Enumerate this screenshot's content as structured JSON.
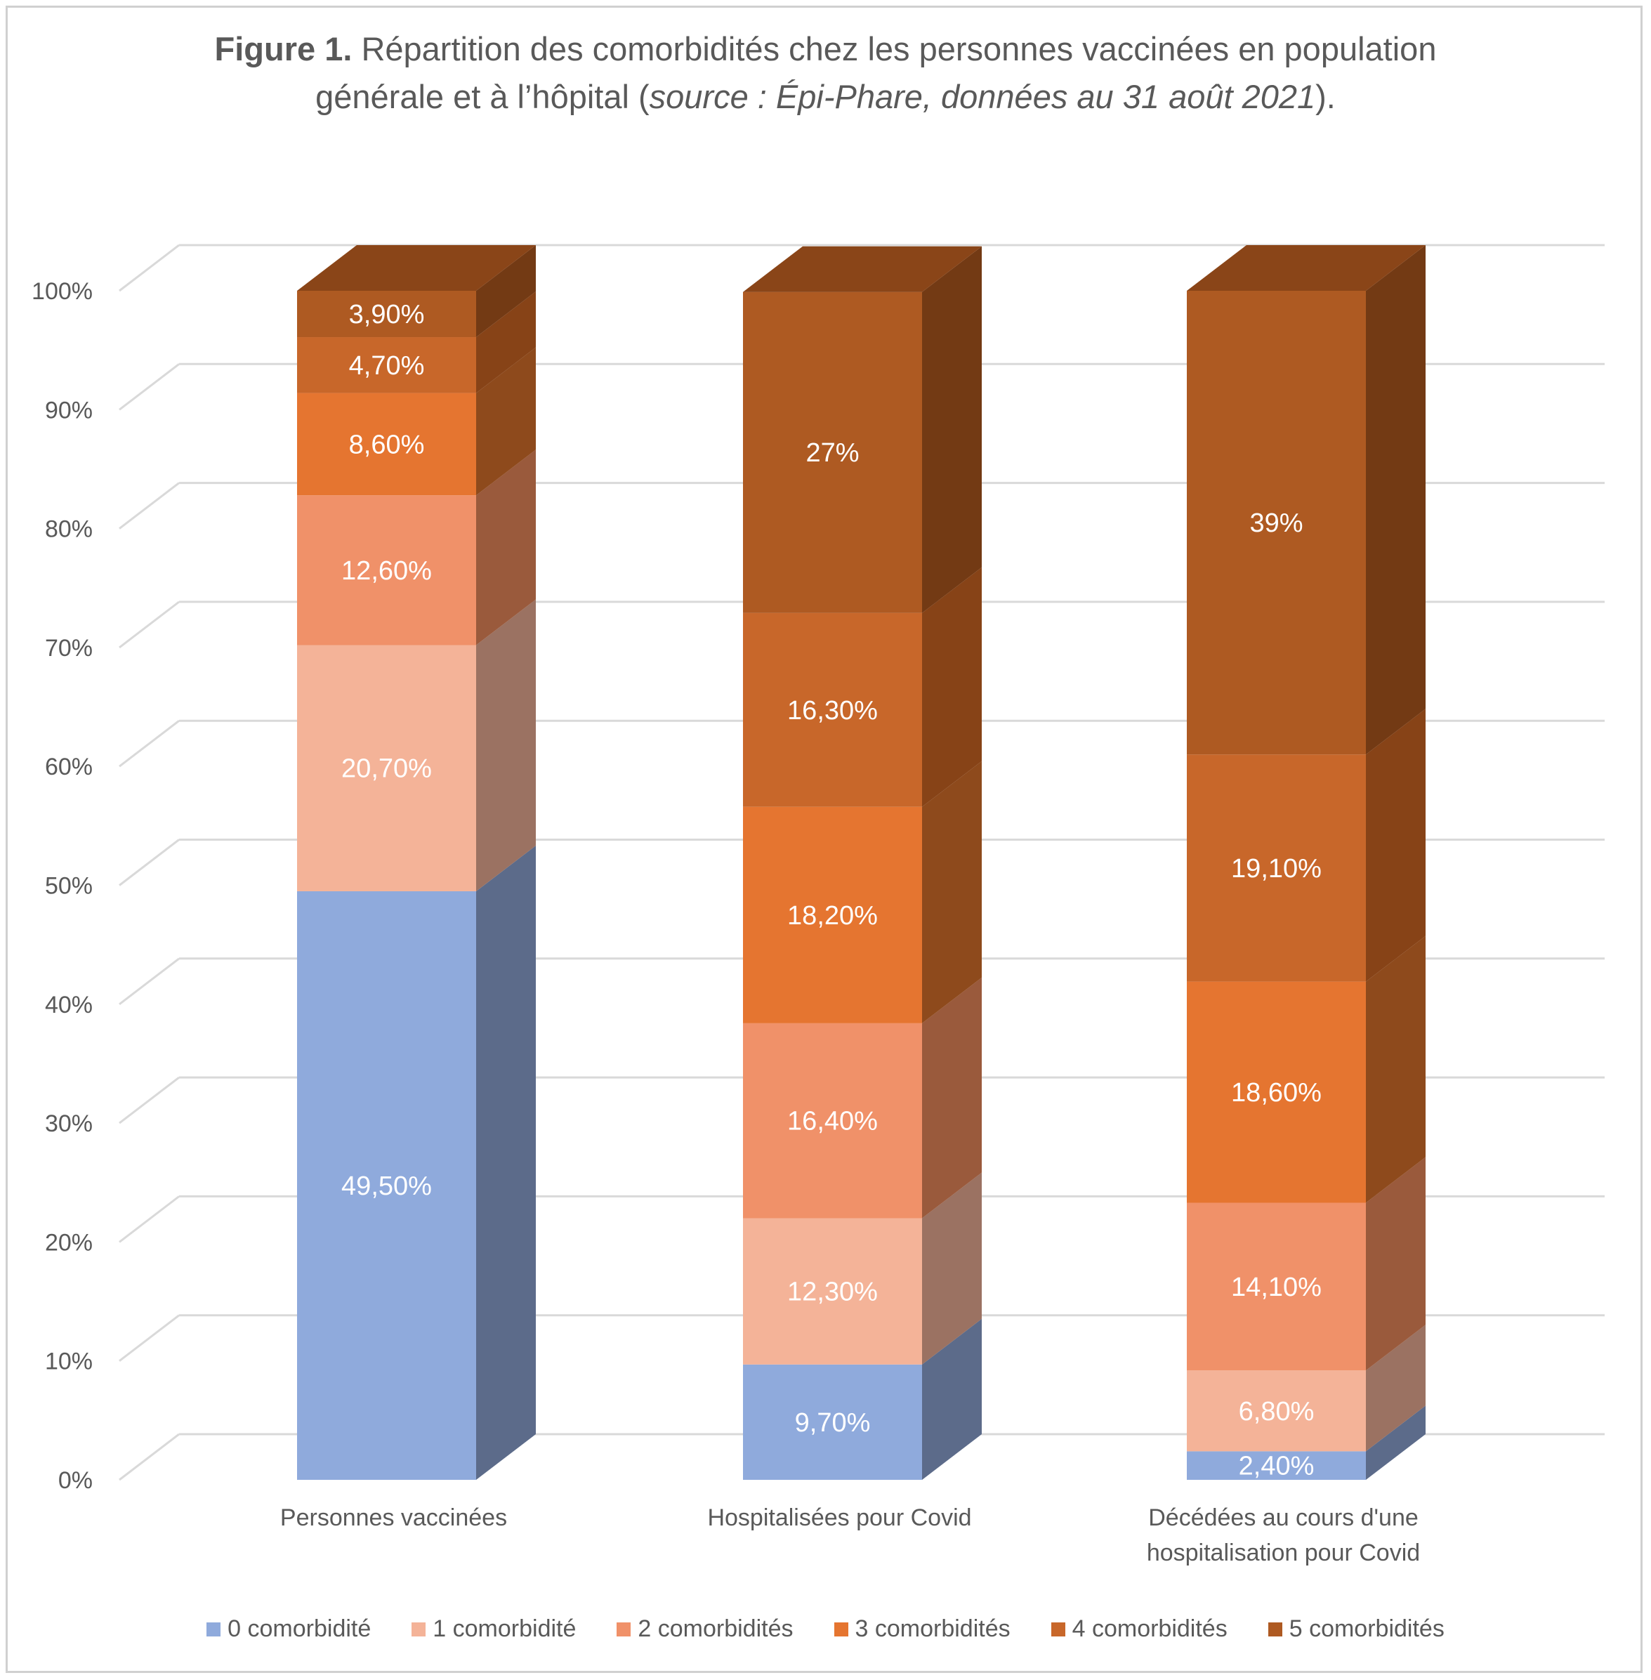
{
  "title": {
    "bold": "Figure 1.",
    "line1": " Répartition des comorbidités chez les personnes vaccinées en population",
    "line2_a": "générale et à l’hôpital (",
    "line2_italic": "source : Épi-Phare, données au 31 août 2021",
    "line2_b": ")."
  },
  "chart_data": {
    "type": "bar",
    "stacked": true,
    "three_d": true,
    "categories": [
      [
        "Personnes vaccinées"
      ],
      [
        "Hospitalisées pour Covid"
      ],
      [
        "Décédées au cours d'une",
        "hospitalisation pour Covid"
      ]
    ],
    "series": [
      {
        "name": "0 comorbidité",
        "values": [
          49.5,
          9.7,
          2.4
        ],
        "labels": [
          "49,50%",
          "9,70%",
          "2,40%"
        ]
      },
      {
        "name": "1 comorbidité",
        "values": [
          20.7,
          12.3,
          6.8
        ],
        "labels": [
          "20,70%",
          "12,30%",
          "6,80%"
        ]
      },
      {
        "name": "2 comorbidités",
        "values": [
          12.6,
          16.4,
          14.1
        ],
        "labels": [
          "12,60%",
          "16,40%",
          "14,10%"
        ]
      },
      {
        "name": "3 comorbidités",
        "values": [
          8.6,
          18.2,
          18.6
        ],
        "labels": [
          "8,60%",
          "18,20%",
          "18,60%"
        ]
      },
      {
        "name": "4 comorbidités",
        "values": [
          4.7,
          16.3,
          19.1
        ],
        "labels": [
          "4,70%",
          "16,30%",
          "19,10%"
        ]
      },
      {
        "name": "5 comorbidités",
        "values": [
          3.9,
          27,
          39
        ],
        "labels": [
          "3,90%",
          "27%",
          "39%"
        ]
      }
    ],
    "colors": {
      "front": [
        "#8faadc",
        "#f4b398",
        "#f09169",
        "#e57530",
        "#c8672a",
        "#ae5a22"
      ],
      "side": [
        "#5c6b8a",
        "#9b7262",
        "#9a5a3c",
        "#8e4a1c",
        "#874317",
        "#733a14"
      ],
      "top": [
        "#7086b0",
        "#c48c74",
        "#c06e4c",
        "#b55a22",
        "#9a4e1e",
        "#8a4518"
      ],
      "grid": "#d9d9d9"
    },
    "y_ticks": [
      "0%",
      "10%",
      "20%",
      "30%",
      "40%",
      "50%",
      "60%",
      "70%",
      "80%",
      "90%",
      "100%"
    ],
    "ylim": [
      0,
      100
    ],
    "legend_position": "bottom"
  }
}
